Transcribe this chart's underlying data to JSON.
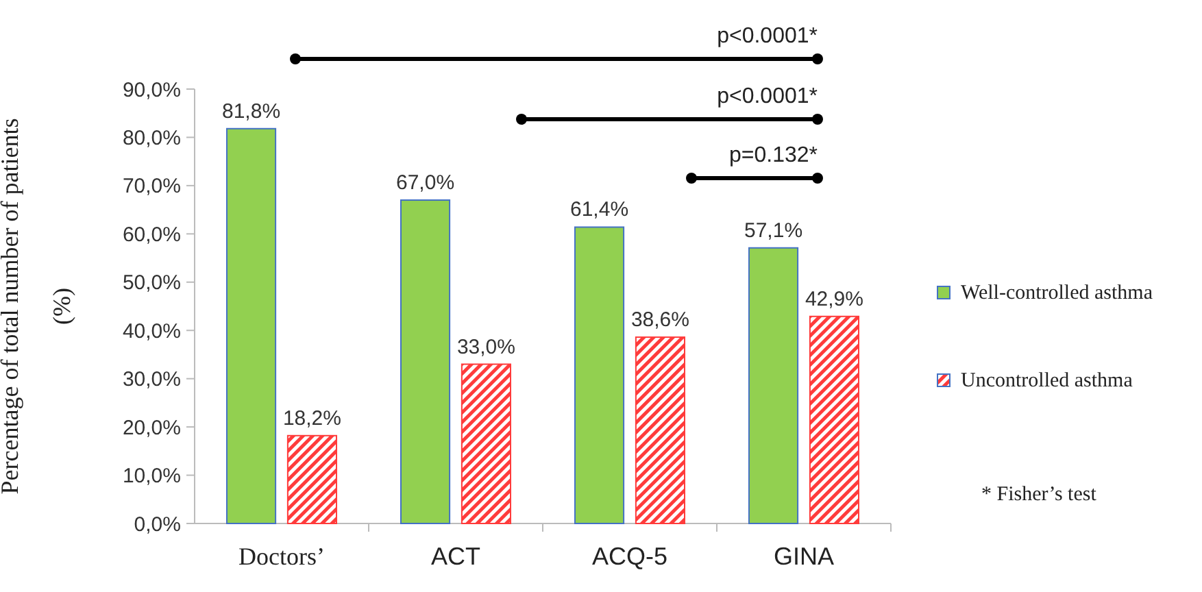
{
  "chart_data": {
    "type": "bar",
    "ylabel": "Percentage of total number of patients (%)",
    "categories": [
      "Doctors’",
      "ACT",
      "ACQ-5",
      "GINA"
    ],
    "series": [
      {
        "name": "Well-controlled asthma",
        "color": "#92d050",
        "values": [
          81.8,
          67.0,
          61.4,
          57.1
        ],
        "value_labels": [
          "81,8%",
          "67,0%",
          "61,4%",
          "57,1%"
        ]
      },
      {
        "name": "Uncontrolled asthma",
        "color": "#ff3b3b",
        "values": [
          18.2,
          33.0,
          38.6,
          42.9
        ],
        "value_labels": [
          "18,2%",
          "33,0%",
          "38,6%",
          "42,9%"
        ]
      }
    ],
    "ylim": [
      0,
      90
    ],
    "yticks": [
      {
        "value": 0,
        "label": "0,0%"
      },
      {
        "value": 10,
        "label": "10,0%"
      },
      {
        "value": 20,
        "label": "20,0%"
      },
      {
        "value": 30,
        "label": "30,0%"
      },
      {
        "value": 40,
        "label": "40,0%"
      },
      {
        "value": 50,
        "label": "50,0%"
      },
      {
        "value": 60,
        "label": "60,0%"
      },
      {
        "value": 70,
        "label": "70,0%"
      },
      {
        "value": 80,
        "label": "80,0%"
      },
      {
        "value": 90,
        "label": "90,0%"
      }
    ],
    "grid": false,
    "legend": "right",
    "annotations": [
      "p<0.0001*",
      "p<0.0001*",
      "p=0.132*",
      "* Fisher’s test"
    ]
  }
}
